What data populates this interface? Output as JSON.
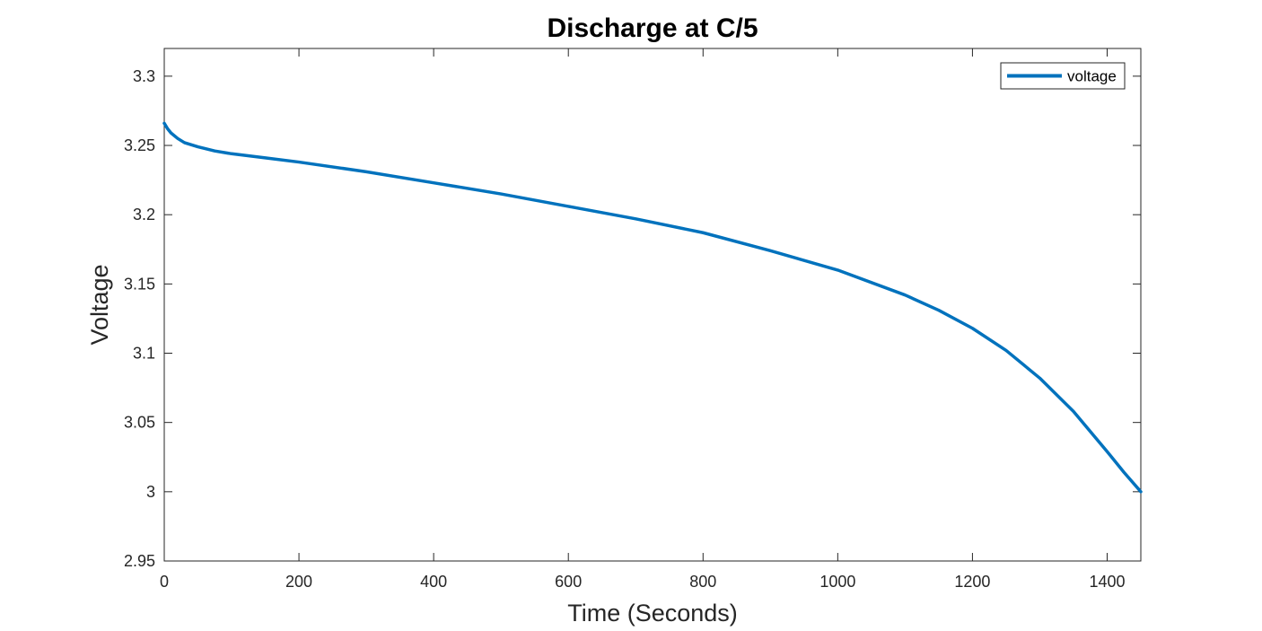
{
  "chart_data": {
    "type": "line",
    "title": "Discharge at C/5",
    "xlabel": "Time (Seconds)",
    "ylabel": "Voltage",
    "xlim": [
      0,
      1450
    ],
    "ylim": [
      2.95,
      3.32
    ],
    "x_ticks": [
      0,
      200,
      400,
      600,
      800,
      1000,
      1200,
      1400
    ],
    "x_tick_labels": [
      "0",
      "200",
      "400",
      "600",
      "800",
      "1000",
      "1200",
      "1400"
    ],
    "y_ticks": [
      2.95,
      3.0,
      3.05,
      3.1,
      3.15,
      3.2,
      3.25,
      3.3
    ],
    "y_tick_labels": [
      "2.95",
      "3",
      "3.05",
      "3.1",
      "3.15",
      "3.2",
      "3.25",
      "3.3"
    ],
    "grid": false,
    "legend_position": "top-right",
    "series": [
      {
        "name": "voltage",
        "color": "#0072BD",
        "x": [
          0,
          5,
          10,
          20,
          30,
          50,
          75,
          100,
          150,
          200,
          300,
          400,
          500,
          600,
          700,
          800,
          900,
          1000,
          1100,
          1150,
          1200,
          1250,
          1300,
          1350,
          1400,
          1425,
          1450
        ],
        "y": [
          3.266,
          3.262,
          3.259,
          3.255,
          3.252,
          3.249,
          3.246,
          3.244,
          3.241,
          3.238,
          3.231,
          3.223,
          3.215,
          3.206,
          3.197,
          3.187,
          3.174,
          3.16,
          3.142,
          3.131,
          3.118,
          3.102,
          3.082,
          3.058,
          3.029,
          3.014,
          3.0
        ]
      }
    ]
  }
}
